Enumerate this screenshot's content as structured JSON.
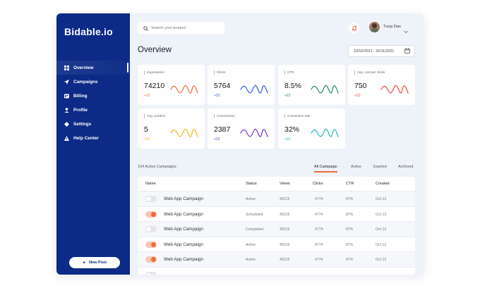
{
  "app": {
    "logo": "Bidable.io"
  },
  "sidebar": {
    "items": [
      {
        "label": "Overview",
        "icon": "grid-icon"
      },
      {
        "label": "Campaigns",
        "icon": "send-icon"
      },
      {
        "label": "Billing",
        "icon": "billing-icon"
      },
      {
        "label": "Profile",
        "icon": "user-icon"
      },
      {
        "label": "Settings",
        "icon": "gear-icon"
      },
      {
        "label": "Help Center",
        "icon": "warning-icon"
      }
    ],
    "new_post": "New Post"
  },
  "header": {
    "search_placeholder": "Search your product",
    "user_name": "Turja Das"
  },
  "main": {
    "title": "Overview",
    "date_range": "10/10/2021 - 20/11/2021"
  },
  "metrics": [
    {
      "label": "Impressions",
      "value": "74210",
      "change": "+22",
      "color": "#f06b3c"
    },
    {
      "label": "Clicks",
      "value": "5764",
      "change": "+22",
      "color": "#2f5bd8"
    },
    {
      "label": "CTR",
      "value": "8.5%",
      "change": "+22",
      "color": "#1f8a5a"
    },
    {
      "label": "Avg. cost per clicks",
      "value": "750",
      "change": "+22",
      "color": "#e8493a"
    },
    {
      "label": "Avg. position",
      "value": "5",
      "change": "+22",
      "color": "#f0b21b"
    },
    {
      "label": "Conversions",
      "value": "2387",
      "change": "+22",
      "color": "#7a2fd3"
    },
    {
      "label": "Conversion rate",
      "value": "32%",
      "change": "+22",
      "color": "#22b5c2"
    }
  ],
  "campaigns": {
    "count_label": "154 Active Campaigns",
    "tabs": [
      "All Campaign",
      "Active",
      "Expired",
      "Archived"
    ],
    "columns": [
      "Name",
      "Status",
      "Views",
      "Clicks",
      "CTR",
      "Created"
    ],
    "rows": [
      {
        "name": "Web App Campaign",
        "status": "Active",
        "views": "45215",
        "clicks": "4774",
        "ctr": "87%",
        "created": "Oct 12",
        "enabled": false
      },
      {
        "name": "Web App Campaign",
        "status": "Scheduled",
        "views": "45215",
        "clicks": "4774",
        "ctr": "87%",
        "created": "Oct 12",
        "enabled": true
      },
      {
        "name": "Web App Campaign",
        "status": "Completed",
        "views": "45215",
        "clicks": "4774",
        "ctr": "87%",
        "created": "Oct 12",
        "enabled": false
      },
      {
        "name": "Web App Campaign",
        "status": "Active",
        "views": "45215",
        "clicks": "4774",
        "ctr": "87%",
        "created": "Oct 12",
        "enabled": true
      },
      {
        "name": "Web App Campaign",
        "status": "Active",
        "views": "45215",
        "clicks": "4774",
        "ctr": "87%",
        "created": "Oct 12",
        "enabled": true
      }
    ]
  }
}
